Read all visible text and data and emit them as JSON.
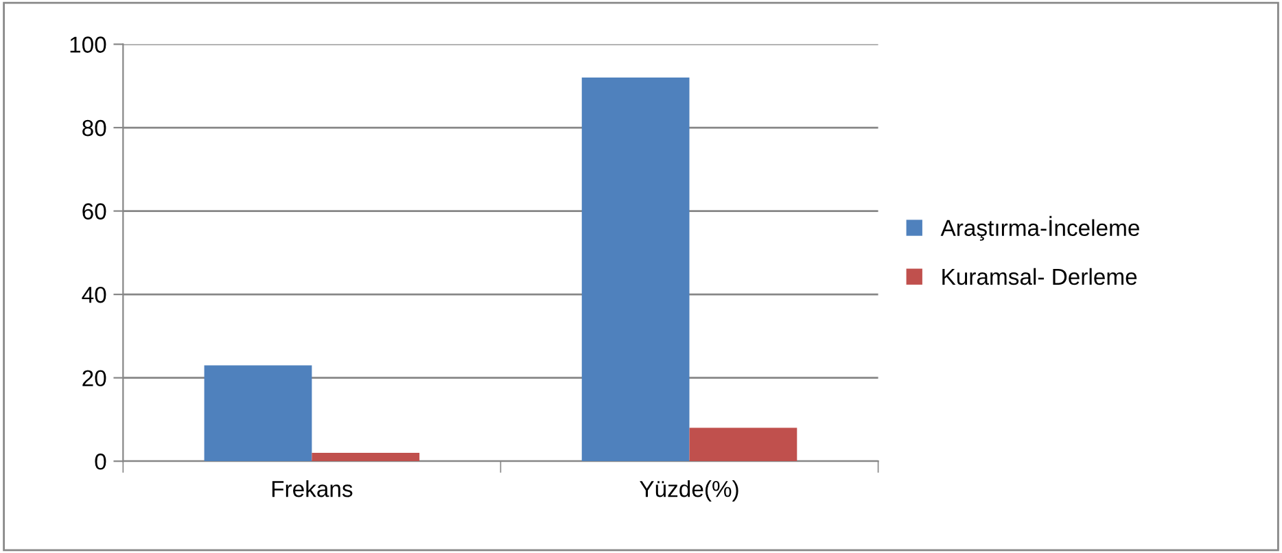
{
  "chart_data": {
    "type": "bar",
    "categories": [
      "Frekans",
      "Yüzde(%)"
    ],
    "series": [
      {
        "name": "Araştırma-İnceleme",
        "color": "#4f81bd",
        "values": [
          23,
          92
        ]
      },
      {
        "name": "Kuramsal- Derleme",
        "color": "#c0504d",
        "values": [
          2,
          8
        ]
      }
    ],
    "ylim": [
      0,
      100
    ],
    "yticks": [
      0,
      20,
      40,
      60,
      80,
      100
    ],
    "grid": "y",
    "legend": "right"
  }
}
